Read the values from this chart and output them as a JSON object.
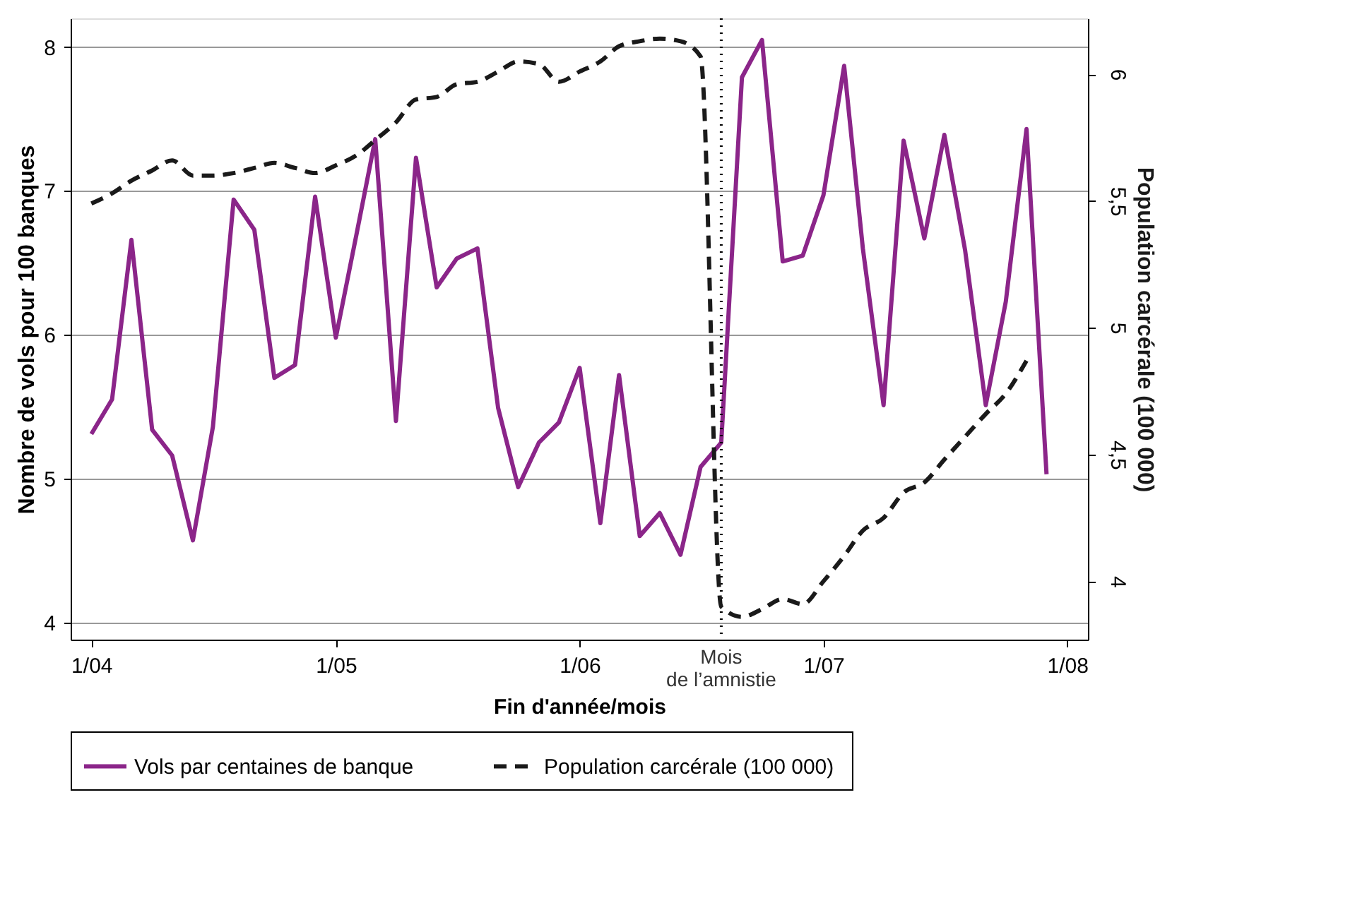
{
  "chart_data": {
    "type": "line",
    "xlabel": "Fin d'année/mois",
    "ylabel": "Nombre de vols pour 100 banques",
    "y2label": "Population carcérale (100 000)",
    "x": [
      "2004-01",
      "2004-02",
      "2004-03",
      "2004-04",
      "2004-05",
      "2004-06",
      "2004-07",
      "2004-08",
      "2004-09",
      "2004-10",
      "2004-11",
      "2004-12",
      "2005-01",
      "2005-02",
      "2005-03",
      "2005-04",
      "2005-05",
      "2005-06",
      "2005-07",
      "2005-08",
      "2005-09",
      "2005-10",
      "2005-11",
      "2005-12",
      "2006-01",
      "2006-02",
      "2006-03",
      "2006-04",
      "2006-05",
      "2006-06",
      "2006-07",
      "2006-08",
      "2006-09",
      "2006-10",
      "2006-11",
      "2006-12",
      "2007-01",
      "2007-02",
      "2007-03",
      "2007-04",
      "2007-05",
      "2007-06",
      "2007-07",
      "2007-08",
      "2007-09",
      "2007-10",
      "2007-11",
      "2007-12"
    ],
    "xlim": [
      "2003-12",
      "2008-02"
    ],
    "xticks": [
      {
        "value": "2004-01",
        "label": "1/04"
      },
      {
        "value": "2005-01",
        "label": "1/05"
      },
      {
        "value": "2006-01",
        "label": "1/06"
      },
      {
        "value": "2007-01",
        "label": "1/07"
      },
      {
        "value": "2008-01",
        "label": "1/08"
      }
    ],
    "ylim": [
      3.88,
      8.2
    ],
    "yticks": [
      4,
      5,
      6,
      7,
      8
    ],
    "y2lim": [
      3.77,
      6.22
    ],
    "y2ticks": [
      4,
      {
        "value": 4.5,
        "label": "4,5"
      },
      5,
      {
        "value": 5.5,
        "label": "5,5"
      },
      6
    ],
    "series": [
      {
        "name": "Vols par centaines de banque",
        "color": "#8b2589",
        "line_style": "solid",
        "values": [
          5.31,
          5.55,
          6.66,
          5.34,
          5.16,
          4.57,
          5.36,
          6.94,
          6.73,
          5.7,
          5.79,
          6.96,
          5.98,
          6.7,
          7.36,
          5.4,
          7.23,
          6.33,
          6.53,
          6.6,
          5.49,
          4.94,
          5.25,
          5.39,
          5.77,
          4.69,
          5.72,
          4.6,
          4.76,
          4.47,
          5.08,
          5.25,
          7.79,
          8.05,
          6.51,
          6.55,
          6.97,
          7.87,
          6.6,
          5.51,
          7.35,
          6.67,
          7.39,
          6.59,
          5.51,
          6.23,
          7.43,
          5.03
        ]
      },
      {
        "name": "Population carcérale  (100 000)",
        "color": "#1a1a1a",
        "line_style": "dashed",
        "axis": "y2",
        "values": [
          5.49,
          5.53,
          5.58,
          5.62,
          5.66,
          5.6,
          5.6,
          5.61,
          5.63,
          5.65,
          5.63,
          5.61,
          5.64,
          5.68,
          5.74,
          5.81,
          5.9,
          5.91,
          5.96,
          5.97,
          6.01,
          6.05,
          6.04,
          5.97,
          6.01,
          6.05,
          6.11,
          6.13,
          6.14,
          6.13,
          6.07,
          3.9,
          3.86,
          3.89,
          3.93,
          3.91,
          4.0,
          4.1,
          4.2,
          4.25,
          4.35,
          4.39,
          4.48,
          4.57,
          4.66,
          4.74,
          4.87,
          null
        ]
      }
    ],
    "ref_lines": [
      {
        "axis": "x",
        "value": "2006-08",
        "label": "Mois de l’amnistie",
        "line_style": "dotted",
        "color": "#000000"
      }
    ],
    "grid": "y",
    "legend": "bottom",
    "marker": "none"
  }
}
